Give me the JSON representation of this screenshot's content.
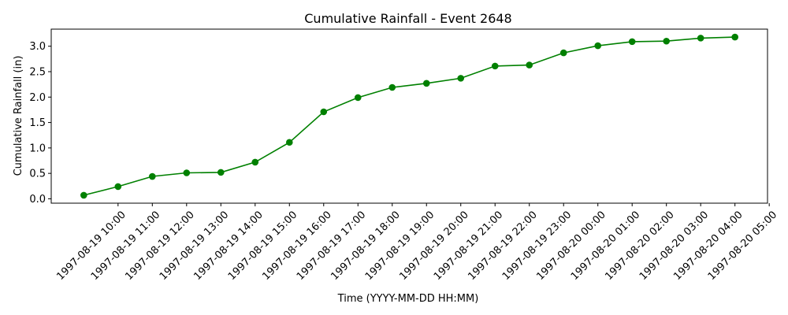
{
  "chart_data": {
    "type": "line",
    "title": "Cumulative Rainfall - Event 2648",
    "xlabel": "Time (YYYY-MM-DD HH:MM)",
    "ylabel": "Cumulative Rainfall (in)",
    "x_ticks": [
      "1997-08-19 10:00",
      "1997-08-19 11:00",
      "1997-08-19 12:00",
      "1997-08-19 13:00",
      "1997-08-19 14:00",
      "1997-08-19 15:00",
      "1997-08-19 16:00",
      "1997-08-19 17:00",
      "1997-08-19 18:00",
      "1997-08-19 19:00",
      "1997-08-19 20:00",
      "1997-08-19 21:00",
      "1997-08-19 22:00",
      "1997-08-19 23:00",
      "1997-08-20 00:00",
      "1997-08-20 01:00",
      "1997-08-20 02:00",
      "1997-08-20 03:00",
      "1997-08-20 04:00",
      "1997-08-20 05:00"
    ],
    "x": [
      "1997-08-19 09:00",
      "1997-08-19 10:00",
      "1997-08-19 11:00",
      "1997-08-19 12:00",
      "1997-08-19 13:00",
      "1997-08-19 14:00",
      "1997-08-19 15:00",
      "1997-08-19 16:00",
      "1997-08-19 17:00",
      "1997-08-19 18:00",
      "1997-08-19 19:00",
      "1997-08-19 20:00",
      "1997-08-19 21:00",
      "1997-08-19 22:00",
      "1997-08-19 23:00",
      "1997-08-20 00:00",
      "1997-08-20 01:00",
      "1997-08-20 02:00",
      "1997-08-20 03:00",
      "1997-08-20 04:00"
    ],
    "series": [
      {
        "values": [
          0.07,
          0.24,
          0.44,
          0.51,
          0.52,
          0.72,
          1.11,
          1.71,
          1.99,
          2.19,
          2.27,
          2.37,
          2.61,
          2.63,
          2.87,
          3.01,
          3.09,
          3.1,
          3.16,
          3.18
        ],
        "color": "#008000",
        "marker": "circle"
      }
    ],
    "y_ticks": [
      0.0,
      0.5,
      1.0,
      1.5,
      2.0,
      2.5,
      3.0
    ],
    "y_tick_labels": [
      "0.0",
      "0.5",
      "1.0",
      "1.5",
      "2.0",
      "2.5",
      "3.0"
    ],
    "ylim": [
      -0.086,
      3.336
    ],
    "grid": false,
    "legend": "none"
  }
}
